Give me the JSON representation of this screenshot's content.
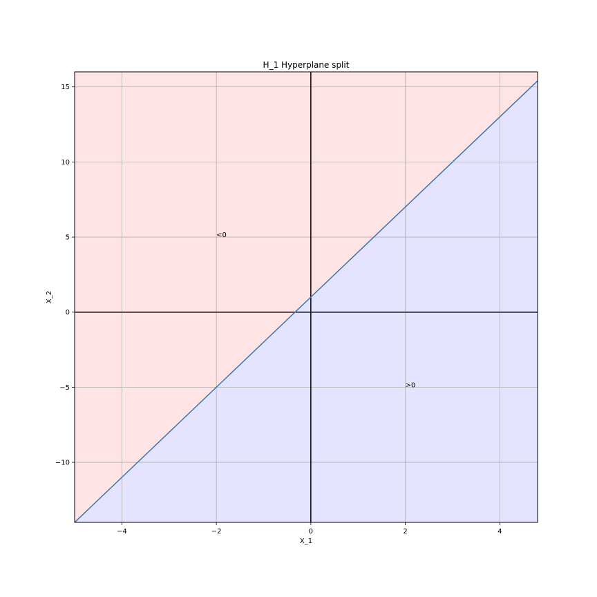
{
  "chart_data": {
    "type": "line",
    "title": "H_1 Hyperplane split",
    "xlabel": "X_1",
    "ylabel": "X_2",
    "xlim": [
      -5,
      4.8
    ],
    "ylim": [
      -14,
      16
    ],
    "xticks": [
      -4,
      -2,
      0,
      2,
      4
    ],
    "yticks": [
      -10,
      -5,
      0,
      5,
      10,
      15
    ],
    "xtick_labels": [
      "−4",
      "−2",
      "0",
      "2",
      "4"
    ],
    "ytick_labels": [
      "−10",
      "−5",
      "0",
      "5",
      "10",
      "15"
    ],
    "grid": true,
    "series": [
      {
        "x": [
          -5,
          4.8
        ],
        "y": [
          -14,
          15.4
        ],
        "color": "#3a75b0"
      }
    ],
    "regions": [
      {
        "label": "<0",
        "color": "#ffe4e6",
        "side": "above"
      },
      {
        "label": ">0",
        "color": "#e4e4fe",
        "side": "below"
      }
    ],
    "annotations": [
      {
        "text": "<0",
        "x": -2,
        "y": 5
      },
      {
        "text": ">0",
        "x": 2,
        "y": -5
      }
    ],
    "reference_lines": {
      "x": 0,
      "y": 0,
      "color": "#000000"
    },
    "colors": {
      "grid": "#b0b0b0",
      "frame": "#000000"
    }
  }
}
